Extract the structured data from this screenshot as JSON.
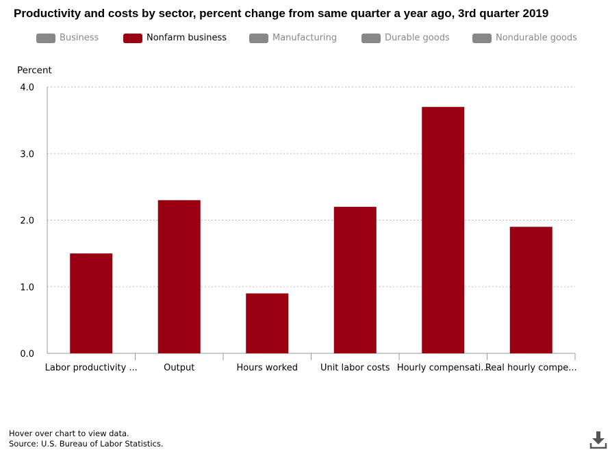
{
  "chart_data": {
    "type": "bar",
    "title": "Productivity and costs by sector, percent change from same quarter a year ago, 3rd quarter 2019",
    "ylabel": "Percent",
    "xlabel": "",
    "ylim": [
      0,
      4
    ],
    "yticks": [
      "0.0",
      "1.0",
      "2.0",
      "3.0",
      "4.0"
    ],
    "ytick_values": [
      0,
      1,
      2,
      3,
      4
    ],
    "grid": true,
    "legend_position": "top",
    "legend": [
      {
        "name": "Business",
        "color": "#888888",
        "active": false
      },
      {
        "name": "Nonfarm business",
        "color": "#990011",
        "active": true
      },
      {
        "name": "Manufacturing",
        "color": "#888888",
        "active": false
      },
      {
        "name": "Durable goods",
        "color": "#888888",
        "active": false
      },
      {
        "name": "Nondurable goods",
        "color": "#888888",
        "active": false
      }
    ],
    "categories": [
      "Labor productivity ...",
      "Output",
      "Hours worked",
      "Unit labor costs",
      "Hourly compensati...",
      "Real hourly compe..."
    ],
    "series": [
      {
        "name": "Nonfarm business",
        "color": "#990011",
        "values": [
          1.5,
          2.3,
          0.9,
          2.2,
          3.7,
          1.9
        ]
      }
    ]
  },
  "footer": {
    "hover_note": "Hover over chart to view data.",
    "source": "Source: U.S. Bureau of Labor Statistics."
  },
  "icons": {
    "download": "download-icon"
  }
}
